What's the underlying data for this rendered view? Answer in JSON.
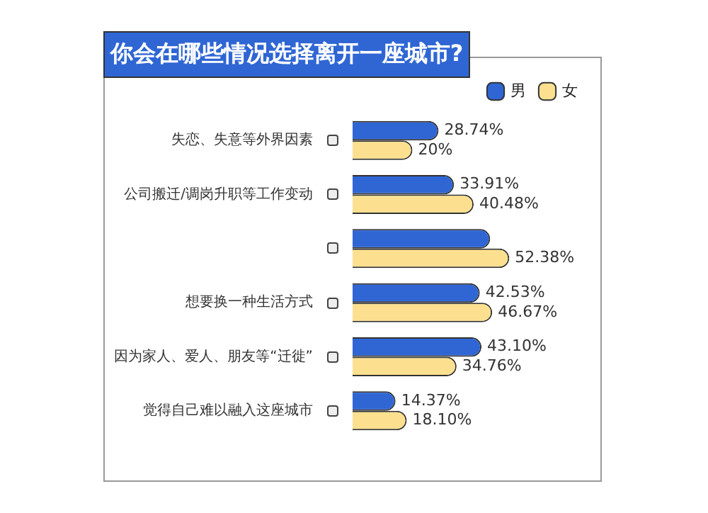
{
  "chart_data": {
    "type": "bar",
    "orientation": "horizontal",
    "title": "你会在哪些情况选择离开一座城市?",
    "categories": [
      "失恋、失意等外界因素",
      "公司搬迁/调岗升职等工作变动",
      null,
      "想要换一种生活方式",
      "因为家人、爱人、朋友等“迁徙”",
      "觉得自己难以融入这座城市"
    ],
    "series": [
      {
        "name": "男",
        "color": "#2f66d4",
        "values": [
          28.74,
          33.91,
          46,
          42.53,
          43.1,
          14.37
        ],
        "value_labels": [
          "28.74%",
          "33.91%",
          null,
          "42.53%",
          "43.10%",
          "14.37%"
        ]
      },
      {
        "name": "女",
        "color": "#fde08f",
        "values": [
          20,
          40.48,
          52.38,
          46.67,
          34.76,
          18.1
        ],
        "value_labels": [
          "20%",
          "40.48%",
          "52.38%",
          "46.67%",
          "34.76%",
          "18.10%"
        ]
      }
    ],
    "legend": "top right"
  }
}
